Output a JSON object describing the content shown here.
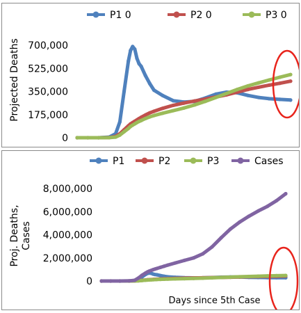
{
  "chart_data": [
    {
      "type": "line",
      "ylabel": "Projected Deaths",
      "xlabel": "",
      "ylim": [
        0,
        700000
      ],
      "yticks": [
        "700,000",
        "525,000",
        "350,000",
        "175,000",
        "0"
      ],
      "ytick_values": [
        700000,
        525000,
        350000,
        175000,
        0
      ],
      "legend_position": "top",
      "annotation": "red ellipse highlighting right end of series",
      "x": [
        0,
        5,
        10,
        15,
        18,
        20,
        22,
        24,
        25,
        26,
        27,
        28,
        29,
        30,
        32,
        34,
        36,
        40,
        45,
        50,
        55,
        60,
        65,
        70,
        75,
        80,
        85,
        90,
        95,
        100
      ],
      "series": [
        {
          "name": "P1 0",
          "color": "#4f81bd",
          "values": [
            0,
            0,
            0,
            5000,
            30000,
            120000,
            350000,
            580000,
            660000,
            690000,
            670000,
            600000,
            560000,
            540000,
            470000,
            410000,
            360000,
            320000,
            280000,
            270000,
            275000,
            300000,
            330000,
            345000,
            340000,
            320000,
            305000,
            295000,
            290000,
            285000
          ]
        },
        {
          "name": "P2 0",
          "color": "#c0504d",
          "values": [
            0,
            0,
            0,
            1000,
            10000,
            30000,
            60000,
            90000,
            105000,
            115000,
            125000,
            135000,
            145000,
            155000,
            172000,
            188000,
            200000,
            222000,
            245000,
            262000,
            278000,
            292000,
            308000,
            325000,
            345000,
            365000,
            382000,
            398000,
            412000,
            428000
          ]
        },
        {
          "name": "P3 0",
          "color": "#9bbb59",
          "values": [
            0,
            0,
            0,
            500,
            5000,
            20000,
            45000,
            70000,
            85000,
            95000,
            105000,
            115000,
            123000,
            130000,
            145000,
            158000,
            168000,
            185000,
            205000,
            225000,
            248000,
            275000,
            305000,
            335000,
            365000,
            392000,
            415000,
            437000,
            458000,
            478000
          ]
        }
      ]
    },
    {
      "type": "line",
      "ylabel": "Proj. Deaths, Cases",
      "xlabel": "Days since 5th Case",
      "ylim": [
        0,
        8000000
      ],
      "yticks": [
        "8,000,000",
        "6,000,000",
        "4,000,000",
        "2,000,000",
        "0"
      ],
      "ytick_values": [
        8000000,
        6000000,
        4000000,
        2000000,
        0
      ],
      "legend_position": "top",
      "annotation": "red ellipse highlighting right end of series",
      "x": [
        0,
        5,
        10,
        15,
        18,
        20,
        22,
        24,
        25,
        26,
        27,
        28,
        29,
        30,
        32,
        34,
        36,
        40,
        45,
        50,
        55,
        60,
        65,
        70,
        75,
        80,
        85,
        90,
        95,
        100
      ],
      "series": [
        {
          "name": "P1",
          "color": "#4f81bd",
          "values": [
            0,
            0,
            0,
            5000,
            30000,
            120000,
            350000,
            580000,
            660000,
            690000,
            670000,
            600000,
            560000,
            540000,
            470000,
            410000,
            360000,
            320000,
            280000,
            270000,
            275000,
            300000,
            330000,
            345000,
            340000,
            320000,
            305000,
            295000,
            290000,
            285000
          ]
        },
        {
          "name": "P2",
          "color": "#c0504d",
          "values": [
            0,
            0,
            0,
            1000,
            10000,
            30000,
            60000,
            90000,
            105000,
            115000,
            125000,
            135000,
            145000,
            155000,
            172000,
            188000,
            200000,
            222000,
            245000,
            262000,
            278000,
            292000,
            308000,
            325000,
            345000,
            365000,
            382000,
            398000,
            412000,
            428000
          ]
        },
        {
          "name": "P3",
          "color": "#9bbb59",
          "values": [
            0,
            0,
            0,
            500,
            5000,
            20000,
            45000,
            70000,
            85000,
            95000,
            105000,
            115000,
            123000,
            130000,
            145000,
            158000,
            168000,
            185000,
            205000,
            225000,
            248000,
            275000,
            305000,
            335000,
            365000,
            392000,
            415000,
            437000,
            458000,
            478000
          ]
        },
        {
          "name": "Cases",
          "color": "#8064a2",
          "values": [
            0,
            0,
            0,
            10000,
            60000,
            250000,
            500000,
            700000,
            790000,
            860000,
            920000,
            980000,
            1030000,
            1080000,
            1180000,
            1280000,
            1380000,
            1560000,
            1780000,
            2000000,
            2350000,
            2950000,
            3750000,
            4500000,
            5100000,
            5600000,
            6050000,
            6450000,
            6950000,
            7550000
          ]
        }
      ]
    }
  ]
}
